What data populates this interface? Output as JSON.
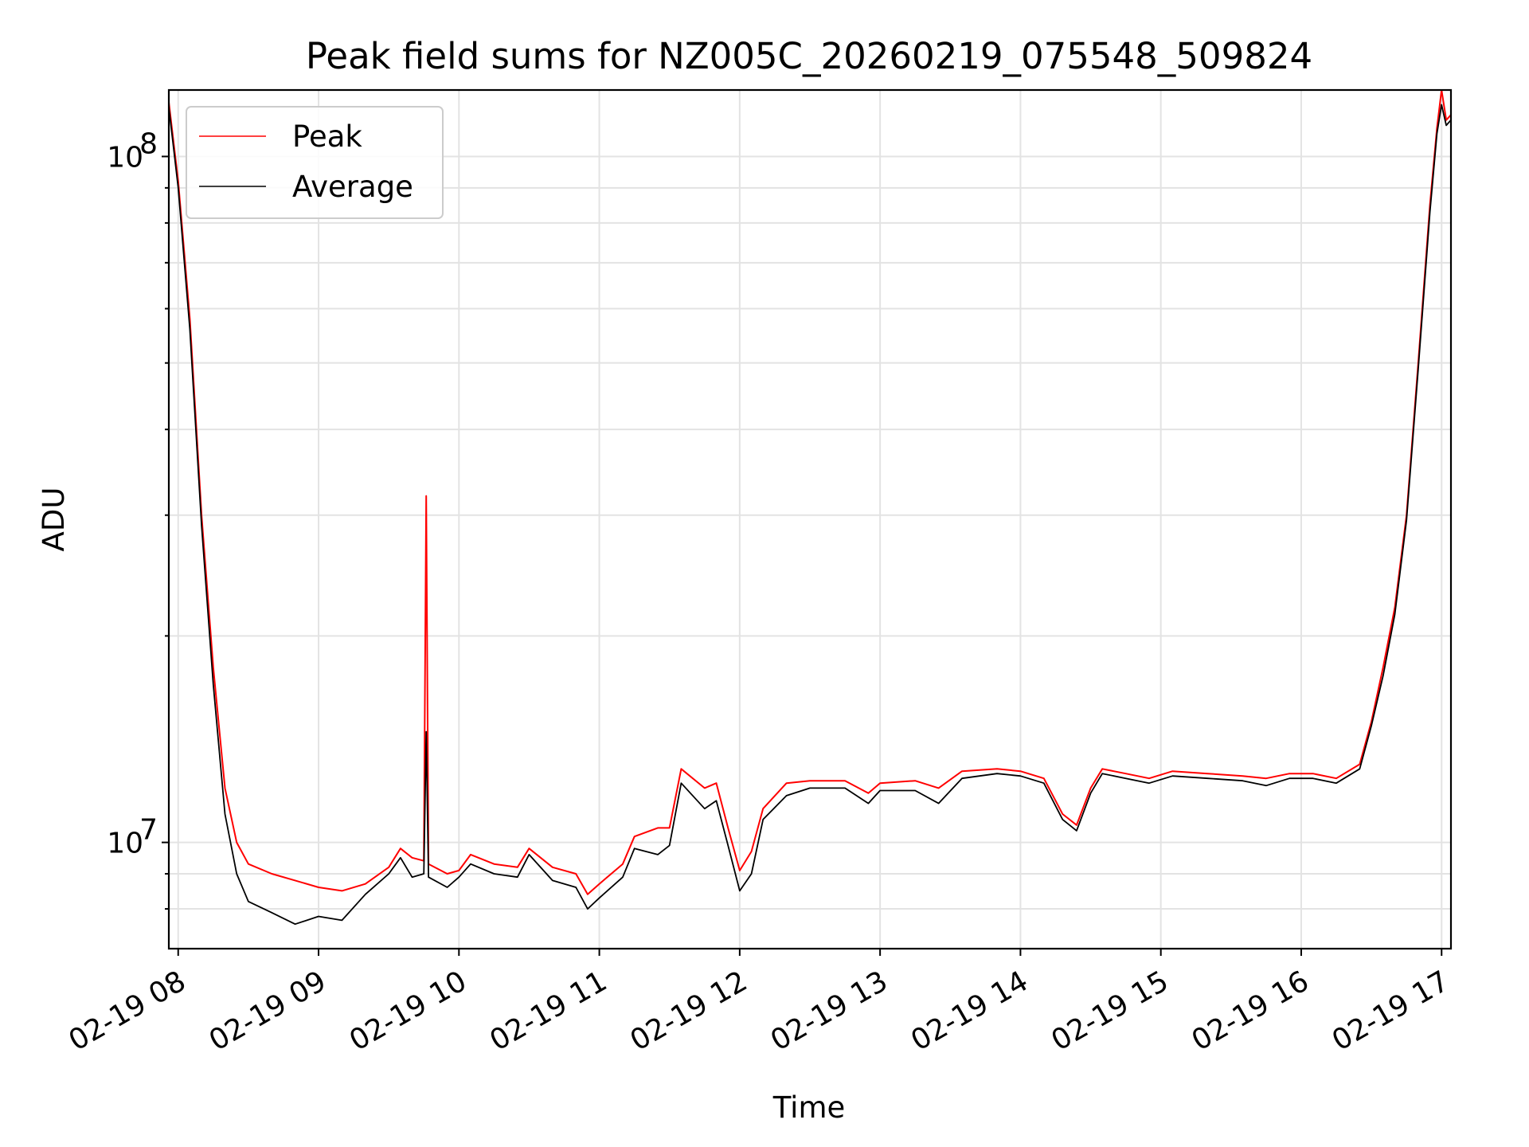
{
  "chart_data": {
    "type": "line",
    "title": "Peak field sums for NZ005C_20260219_075548_509824",
    "xlabel": "Time",
    "ylabel": "ADU",
    "yscale": "log",
    "grid": true,
    "legend_position": "upper-left",
    "xlim": [
      "2026-02-19 07:56",
      "2026-02-19 17:04"
    ],
    "ylim": [
      7000000.0,
      125000000.0
    ],
    "x_tick_labels": [
      "02-19 08",
      "02-19 09",
      "02-19 10",
      "02-19 11",
      "02-19 12",
      "02-19 13",
      "02-19 14",
      "02-19 15",
      "02-19 16",
      "02-19 17"
    ],
    "y_tick_labels": [
      {
        "value": 10000000,
        "base": "10",
        "exp": "7"
      },
      {
        "value": 100000000,
        "base": "10",
        "exp": "8"
      }
    ],
    "series": [
      {
        "name": "Peak",
        "color": "#ff0000",
        "points": [
          [
            "2026-02-19 07:56",
            120000000.0
          ],
          [
            "2026-02-19 08:00",
            92000000.0
          ],
          [
            "2026-02-19 08:05",
            58000000.0
          ],
          [
            "2026-02-19 08:10",
            30000000.0
          ],
          [
            "2026-02-19 08:15",
            18000000.0
          ],
          [
            "2026-02-19 08:20",
            12000000.0
          ],
          [
            "2026-02-19 08:25",
            10000000.0
          ],
          [
            "2026-02-19 08:30",
            9300000.0
          ],
          [
            "2026-02-19 08:40",
            9000000.0
          ],
          [
            "2026-02-19 08:50",
            8800000.0
          ],
          [
            "2026-02-19 09:00",
            8600000.0
          ],
          [
            "2026-02-19 09:10",
            8500000.0
          ],
          [
            "2026-02-19 09:20",
            8700000.0
          ],
          [
            "2026-02-19 09:30",
            9200000.0
          ],
          [
            "2026-02-19 09:35",
            9800000.0
          ],
          [
            "2026-02-19 09:40",
            9500000.0
          ],
          [
            "2026-02-19 09:45",
            9400000.0
          ],
          [
            "2026-02-19 09:46",
            32000000.0
          ],
          [
            "2026-02-19 09:47",
            9300000.0
          ],
          [
            "2026-02-19 09:55",
            9000000.0
          ],
          [
            "2026-02-19 10:00",
            9100000.0
          ],
          [
            "2026-02-19 10:05",
            9600000.0
          ],
          [
            "2026-02-19 10:15",
            9300000.0
          ],
          [
            "2026-02-19 10:25",
            9200000.0
          ],
          [
            "2026-02-19 10:30",
            9800000.0
          ],
          [
            "2026-02-19 10:40",
            9200000.0
          ],
          [
            "2026-02-19 10:50",
            9000000.0
          ],
          [
            "2026-02-19 10:55",
            8400000.0
          ],
          [
            "2026-02-19 11:00",
            8700000.0
          ],
          [
            "2026-02-19 11:10",
            9300000.0
          ],
          [
            "2026-02-19 11:15",
            10200000.0
          ],
          [
            "2026-02-19 11:25",
            10500000.0
          ],
          [
            "2026-02-19 11:30",
            10500000.0
          ],
          [
            "2026-02-19 11:35",
            12800000.0
          ],
          [
            "2026-02-19 11:45",
            12000000.0
          ],
          [
            "2026-02-19 11:50",
            12200000.0
          ],
          [
            "2026-02-19 11:55",
            10500000.0
          ],
          [
            "2026-02-19 12:00",
            9100000.0
          ],
          [
            "2026-02-19 12:05",
            9700000.0
          ],
          [
            "2026-02-19 12:10",
            11200000.0
          ],
          [
            "2026-02-19 12:20",
            12200000.0
          ],
          [
            "2026-02-19 12:30",
            12300000.0
          ],
          [
            "2026-02-19 12:45",
            12300000.0
          ],
          [
            "2026-02-19 12:55",
            11800000.0
          ],
          [
            "2026-02-19 13:00",
            12200000.0
          ],
          [
            "2026-02-19 13:15",
            12300000.0
          ],
          [
            "2026-02-19 13:25",
            12000000.0
          ],
          [
            "2026-02-19 13:35",
            12700000.0
          ],
          [
            "2026-02-19 13:50",
            12800000.0
          ],
          [
            "2026-02-19 14:00",
            12700000.0
          ],
          [
            "2026-02-19 14:10",
            12400000.0
          ],
          [
            "2026-02-19 14:18",
            11000000.0
          ],
          [
            "2026-02-19 14:24",
            10600000.0
          ],
          [
            "2026-02-19 14:30",
            12000000.0
          ],
          [
            "2026-02-19 14:35",
            12800000.0
          ],
          [
            "2026-02-19 14:45",
            12600000.0
          ],
          [
            "2026-02-19 14:55",
            12400000.0
          ],
          [
            "2026-02-19 15:05",
            12700000.0
          ],
          [
            "2026-02-19 15:20",
            12600000.0
          ],
          [
            "2026-02-19 15:35",
            12500000.0
          ],
          [
            "2026-02-19 15:45",
            12400000.0
          ],
          [
            "2026-02-19 15:55",
            12600000.0
          ],
          [
            "2026-02-19 16:05",
            12600000.0
          ],
          [
            "2026-02-19 16:15",
            12400000.0
          ],
          [
            "2026-02-19 16:25",
            13000000.0
          ],
          [
            "2026-02-19 16:30",
            15000000.0
          ],
          [
            "2026-02-19 16:35",
            18000000.0
          ],
          [
            "2026-02-19 16:40",
            22000000.0
          ],
          [
            "2026-02-19 16:45",
            30000000.0
          ],
          [
            "2026-02-19 16:50",
            50000000.0
          ],
          [
            "2026-02-19 16:55",
            85000000.0
          ],
          [
            "2026-02-19 16:58",
            110000000.0
          ],
          [
            "2026-02-19 17:00",
            125000000.0
          ],
          [
            "2026-02-19 17:02",
            113000000.0
          ],
          [
            "2026-02-19 17:04",
            115000000.0
          ]
        ]
      },
      {
        "name": "Average",
        "color": "#000000",
        "points": [
          [
            "2026-02-19 07:56",
            118000000.0
          ],
          [
            "2026-02-19 08:00",
            90000000.0
          ],
          [
            "2026-02-19 08:05",
            56000000.0
          ],
          [
            "2026-02-19 08:10",
            29000000.0
          ],
          [
            "2026-02-19 08:15",
            17000000.0
          ],
          [
            "2026-02-19 08:20",
            11000000.0
          ],
          [
            "2026-02-19 08:25",
            9000000.0
          ],
          [
            "2026-02-19 08:30",
            8200000.0
          ],
          [
            "2026-02-19 08:40",
            7900000.0
          ],
          [
            "2026-02-19 08:50",
            7600000.0
          ],
          [
            "2026-02-19 09:00",
            7800000.0
          ],
          [
            "2026-02-19 09:10",
            7700000.0
          ],
          [
            "2026-02-19 09:20",
            8400000.0
          ],
          [
            "2026-02-19 09:30",
            9000000.0
          ],
          [
            "2026-02-19 09:35",
            9500000.0
          ],
          [
            "2026-02-19 09:40",
            8900000.0
          ],
          [
            "2026-02-19 09:45",
            9000000.0
          ],
          [
            "2026-02-19 09:46",
            14500000.0
          ],
          [
            "2026-02-19 09:47",
            8900000.0
          ],
          [
            "2026-02-19 09:55",
            8600000.0
          ],
          [
            "2026-02-19 10:00",
            8900000.0
          ],
          [
            "2026-02-19 10:05",
            9300000.0
          ],
          [
            "2026-02-19 10:15",
            9000000.0
          ],
          [
            "2026-02-19 10:25",
            8900000.0
          ],
          [
            "2026-02-19 10:30",
            9600000.0
          ],
          [
            "2026-02-19 10:40",
            8800000.0
          ],
          [
            "2026-02-19 10:50",
            8600000.0
          ],
          [
            "2026-02-19 10:55",
            8000000.0
          ],
          [
            "2026-02-19 11:00",
            8300000.0
          ],
          [
            "2026-02-19 11:10",
            8900000.0
          ],
          [
            "2026-02-19 11:15",
            9800000.0
          ],
          [
            "2026-02-19 11:25",
            9600000.0
          ],
          [
            "2026-02-19 11:30",
            9900000.0
          ],
          [
            "2026-02-19 11:35",
            12200000.0
          ],
          [
            "2026-02-19 11:45",
            11200000.0
          ],
          [
            "2026-02-19 11:50",
            11500000.0
          ],
          [
            "2026-02-19 11:55",
            9900000.0
          ],
          [
            "2026-02-19 12:00",
            8500000.0
          ],
          [
            "2026-02-19 12:05",
            9000000.0
          ],
          [
            "2026-02-19 12:10",
            10800000.0
          ],
          [
            "2026-02-19 12:20",
            11700000.0
          ],
          [
            "2026-02-19 12:30",
            12000000.0
          ],
          [
            "2026-02-19 12:45",
            12000000.0
          ],
          [
            "2026-02-19 12:55",
            11400000.0
          ],
          [
            "2026-02-19 13:00",
            11900000.0
          ],
          [
            "2026-02-19 13:15",
            11900000.0
          ],
          [
            "2026-02-19 13:25",
            11400000.0
          ],
          [
            "2026-02-19 13:35",
            12400000.0
          ],
          [
            "2026-02-19 13:50",
            12600000.0
          ],
          [
            "2026-02-19 14:00",
            12500000.0
          ],
          [
            "2026-02-19 14:10",
            12200000.0
          ],
          [
            "2026-02-19 14:18",
            10800000.0
          ],
          [
            "2026-02-19 14:24",
            10400000.0
          ],
          [
            "2026-02-19 14:30",
            11800000.0
          ],
          [
            "2026-02-19 14:35",
            12600000.0
          ],
          [
            "2026-02-19 14:45",
            12400000.0
          ],
          [
            "2026-02-19 14:55",
            12200000.0
          ],
          [
            "2026-02-19 15:05",
            12500000.0
          ],
          [
            "2026-02-19 15:20",
            12400000.0
          ],
          [
            "2026-02-19 15:35",
            12300000.0
          ],
          [
            "2026-02-19 15:45",
            12100000.0
          ],
          [
            "2026-02-19 15:55",
            12400000.0
          ],
          [
            "2026-02-19 16:05",
            12400000.0
          ],
          [
            "2026-02-19 16:15",
            12200000.0
          ],
          [
            "2026-02-19 16:25",
            12800000.0
          ],
          [
            "2026-02-19 16:30",
            14800000.0
          ],
          [
            "2026-02-19 16:35",
            17500000.0
          ],
          [
            "2026-02-19 16:40",
            21500000.0
          ],
          [
            "2026-02-19 16:45",
            29500000.0
          ],
          [
            "2026-02-19 16:50",
            49000000.0
          ],
          [
            "2026-02-19 16:55",
            83000000.0
          ],
          [
            "2026-02-19 16:58",
            108000000.0
          ],
          [
            "2026-02-19 17:00",
            119000000.0
          ],
          [
            "2026-02-19 17:02",
            111000000.0
          ],
          [
            "2026-02-19 17:04",
            113000000.0
          ]
        ]
      }
    ]
  }
}
